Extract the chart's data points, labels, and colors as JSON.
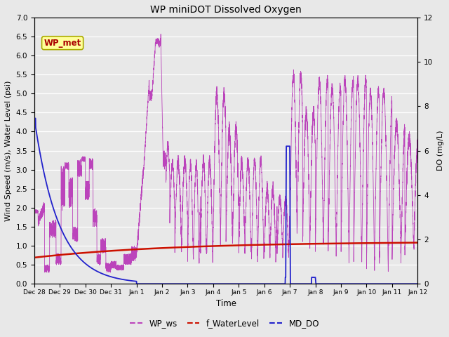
{
  "title": "WP miniDOT Dissolved Oxygen",
  "xlabel": "Time",
  "ylabel_left": "Wind Speed (m/s), Water Level (psi)",
  "ylabel_right": "DO (mg/L)",
  "ylim_left": [
    0.0,
    7.0
  ],
  "ylim_right": [
    0.0,
    12.0
  ],
  "yticks_left": [
    0.0,
    0.5,
    1.0,
    1.5,
    2.0,
    2.5,
    3.0,
    3.5,
    4.0,
    4.5,
    5.0,
    5.5,
    6.0,
    6.5,
    7.0
  ],
  "yticks_right": [
    0,
    2,
    4,
    6,
    8,
    10,
    12
  ],
  "plot_bg_color": "#e8e8e8",
  "fig_bg_color": "#e8e8e8",
  "wp_ws_color": "#bb44bb",
  "f_water_color": "#cc1100",
  "md_do_color": "#2222cc",
  "annotation_text": "WP_met",
  "annotation_color": "#aa0000",
  "annotation_bg": "#ffff99",
  "annotation_edge": "#aaaa00",
  "legend_labels": [
    "WP_ws",
    "f_WaterLevel",
    "MD_DO"
  ],
  "legend_colors": [
    "#bb44bb",
    "#cc1100",
    "#2222cc"
  ],
  "xtick_labels": [
    "Dec 28",
    "Dec 29",
    "Dec 30",
    "Dec 31",
    "Jan 1",
    "Jan 2",
    "Jan 3",
    "Jan 4",
    "Jan 5",
    "Jan 6",
    "Jan 7",
    "Jan 8",
    "Jan 9",
    "Jan 10",
    "Jan 11",
    "Jan 12"
  ],
  "xtick_positions": [
    0,
    1,
    2,
    3,
    4,
    5,
    6,
    7,
    8,
    9,
    10,
    11,
    12,
    13,
    14,
    15
  ],
  "figsize": [
    6.4,
    4.8
  ],
  "dpi": 100
}
